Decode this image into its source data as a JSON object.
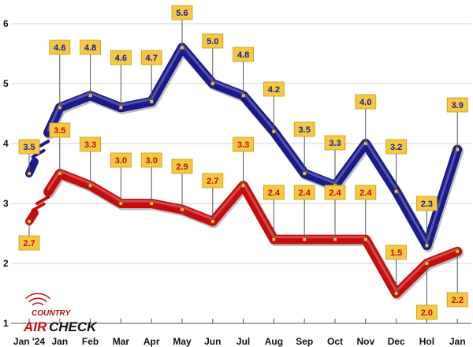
{
  "chart_data": {
    "type": "line",
    "categories": [
      "Jan '24",
      "Jan",
      "Feb",
      "Mar",
      "Apr",
      "May",
      "Jun",
      "Jul",
      "Aug",
      "Sep",
      "Oct",
      "Nov",
      "Dec",
      "Hol",
      "Jan"
    ],
    "series": [
      {
        "color": "#1a1a8c",
        "label_color": "#1a1aa8",
        "values": [
          3.5,
          4.6,
          4.8,
          4.6,
          4.7,
          5.6,
          5.0,
          4.8,
          4.2,
          3.5,
          3.3,
          4.0,
          3.2,
          2.3,
          3.9
        ],
        "labels": [
          "3.5",
          "4.6",
          "4.8",
          "4.6",
          "4.7",
          "5.6",
          "5.0",
          "4.8",
          "4.2",
          "3.5",
          "3.3",
          "4.0",
          "3.2",
          "2.3",
          "3.9"
        ]
      },
      {
        "color": "#c40d0d",
        "label_color": "#c40d0d",
        "values": [
          2.7,
          3.5,
          3.3,
          3.0,
          3.0,
          2.9,
          2.7,
          3.3,
          2.4,
          2.4,
          2.4,
          2.4,
          1.5,
          2.0,
          2.2
        ],
        "labels": [
          "2.7",
          "3.5",
          "3.3",
          "3.0",
          "3.0",
          "2.9",
          "2.7",
          "3.3",
          "2.4",
          "2.4",
          "2.4",
          "2.4",
          "1.5",
          "2.0",
          "2.2"
        ]
      }
    ],
    "ylim": [
      1,
      6
    ],
    "yticks": [
      "1",
      "2",
      "3",
      "4",
      "5",
      "6"
    ],
    "grid": true,
    "label_box_color": "#f5c842"
  },
  "logo": {
    "top": "COUNTRY",
    "air": "AIR",
    "check": "CHECK"
  }
}
